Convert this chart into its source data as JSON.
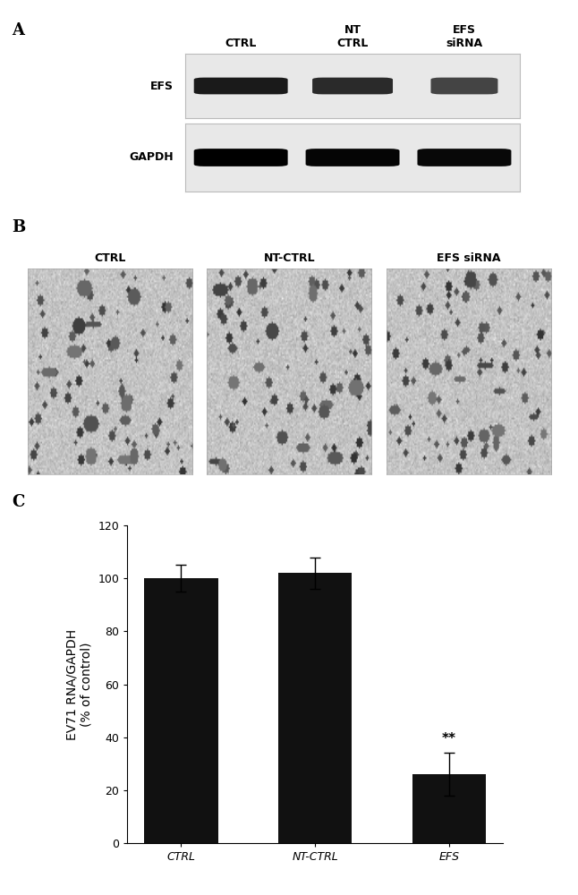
{
  "panel_a_label": "A",
  "panel_b_label": "B",
  "panel_c_label": "C",
  "wb_labels": [
    "EFS",
    "GAPDH"
  ],
  "wb_col_labels": [
    "CTRL",
    "NT\nCTRL",
    "EFS\nsiRNA"
  ],
  "wb_band_colors_efs": [
    "#1a1a1a",
    "#2a2a2a",
    "#444444"
  ],
  "wb_band_colors_gapdh": [
    "#000000",
    "#050505",
    "#080808"
  ],
  "wb_bg_color": "#e8e8e8",
  "micro_titles": [
    "CTRL",
    "NT-CTRL",
    "EFS siRNA"
  ],
  "bar_categories": [
    "CTRL",
    "NT-CTRL",
    "EFS"
  ],
  "bar_values": [
    100,
    102,
    26
  ],
  "bar_errors": [
    5,
    6,
    8
  ],
  "bar_color": "#111111",
  "ylabel": "EV71 RNA/GAPDH\n(% of control)",
  "ylim": [
    0,
    120
  ],
  "yticks": [
    0,
    20,
    40,
    60,
    80,
    100,
    120
  ],
  "significance": "**",
  "sig_bar_index": 2,
  "background_color": "#ffffff",
  "font_size_labels": 10,
  "font_size_ticks": 9,
  "font_size_panel": 13,
  "font_size_wb": 9
}
